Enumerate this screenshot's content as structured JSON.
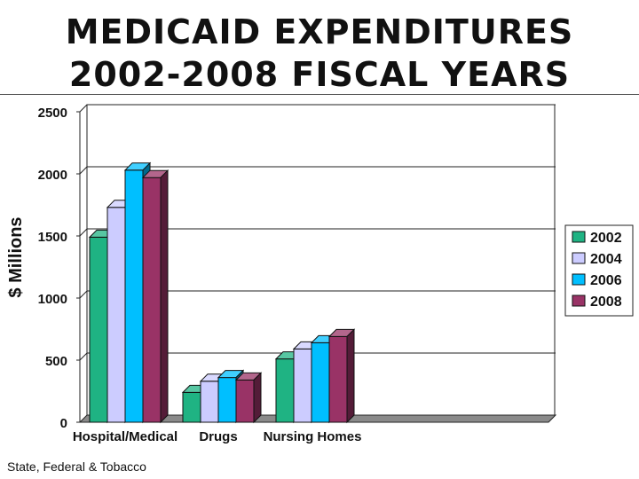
{
  "header": {
    "title_line_1": "MEDICAID EXPENDITURES",
    "title_line_2": "2002-2008 FISCAL YEARS"
  },
  "footer": {
    "source_note": "State, Federal & Tobacco"
  },
  "chart_data": {
    "type": "bar",
    "title": "MEDICAID EXPENDITURES 2002-2008 FISCAL YEARS",
    "xlabel": "",
    "ylabel": "$ Millions",
    "ylim": [
      0,
      2500
    ],
    "yticks": [
      0,
      500,
      1000,
      1500,
      2000,
      2500
    ],
    "grid": true,
    "legend_position": "right",
    "categories": [
      "Hospital/Medical",
      "Drugs",
      "Nursing Homes"
    ],
    "series": [
      {
        "name": "2002",
        "color": "#1fb383",
        "values": [
          1490,
          240,
          510
        ]
      },
      {
        "name": "2004",
        "color": "#ccccff",
        "values": [
          1730,
          330,
          590
        ]
      },
      {
        "name": "2006",
        "color": "#00bfff",
        "values": [
          2030,
          360,
          640
        ]
      },
      {
        "name": "2008",
        "color": "#993366",
        "values": [
          1970,
          340,
          690
        ]
      }
    ]
  }
}
